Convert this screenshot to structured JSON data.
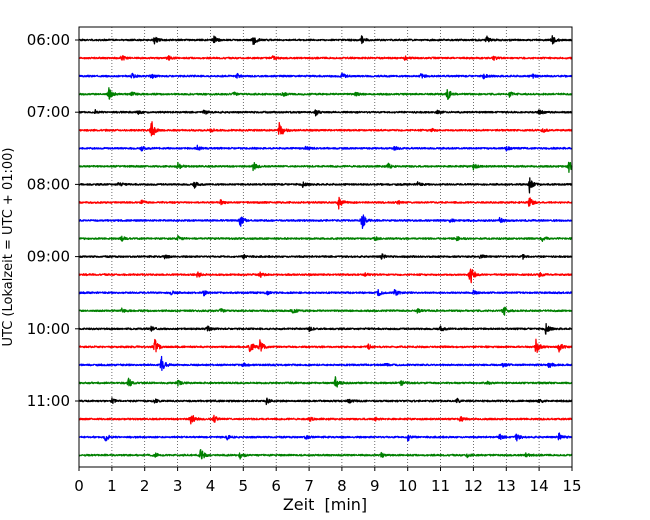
{
  "chart_data": {
    "type": "line",
    "xlabel": "Zeit  [min]",
    "ylabel": "UTC (Lokalzeit = UTC + 01:00)",
    "xlim": [
      0,
      15
    ],
    "x_ticks": [
      0,
      1,
      2,
      3,
      4,
      5,
      6,
      7,
      8,
      9,
      10,
      11,
      12,
      13,
      14,
      15
    ],
    "y_tick_labels": [
      "06:00",
      "07:00",
      "08:00",
      "09:00",
      "10:00",
      "11:00"
    ],
    "y_tick_rows": [
      0,
      4,
      8,
      12,
      16,
      20
    ],
    "vertical_grid": "dotted",
    "row_minutes": 15,
    "row_color_cycle": [
      "#000000",
      "#ff0000",
      "#0000ff",
      "#008000"
    ],
    "rows": [
      {
        "start": "06:00",
        "events": [
          [
            2.3,
            0.7
          ],
          [
            4.1,
            0.8
          ],
          [
            5.3,
            1.0
          ],
          [
            8.6,
            0.7
          ],
          [
            12.4,
            0.6
          ],
          [
            14.4,
            1.0
          ]
        ]
      },
      {
        "start": "06:15",
        "events": [
          [
            1.3,
            0.5
          ],
          [
            2.7,
            0.5
          ],
          [
            5.9,
            0.4
          ],
          [
            9.9,
            0.4
          ],
          [
            12.6,
            0.4
          ]
        ]
      },
      {
        "start": "06:30",
        "events": [
          [
            1.6,
            0.5
          ],
          [
            2.2,
            0.4
          ],
          [
            4.8,
            0.4
          ],
          [
            8.0,
            0.6
          ],
          [
            10.4,
            0.5
          ],
          [
            12.3,
            0.4
          ],
          [
            13.8,
            0.4
          ]
        ]
      },
      {
        "start": "06:45",
        "events": [
          [
            0.9,
            1.2
          ],
          [
            1.6,
            0.5
          ],
          [
            4.7,
            0.4
          ],
          [
            6.2,
            0.4
          ],
          [
            8.4,
            0.4
          ],
          [
            11.2,
            1.2
          ],
          [
            13.1,
            0.5
          ]
        ]
      },
      {
        "start": "07:00",
        "events": [
          [
            0.5,
            0.4
          ],
          [
            1.8,
            0.4
          ],
          [
            3.8,
            0.4
          ],
          [
            7.2,
            0.5
          ],
          [
            10.9,
            0.4
          ],
          [
            14.0,
            0.5
          ]
        ]
      },
      {
        "start": "07:15",
        "events": [
          [
            2.2,
            1.9
          ],
          [
            4.0,
            0.4
          ],
          [
            6.1,
            2.0
          ],
          [
            10.7,
            0.4
          ],
          [
            14.1,
            0.4
          ]
        ]
      },
      {
        "start": "07:30",
        "events": [
          [
            1.9,
            0.4
          ],
          [
            3.6,
            0.4
          ],
          [
            6.9,
            0.4
          ],
          [
            9.6,
            0.4
          ],
          [
            13.0,
            0.4
          ]
        ]
      },
      {
        "start": "07:45",
        "events": [
          [
            3.0,
            0.7
          ],
          [
            5.3,
            0.8
          ],
          [
            9.4,
            0.5
          ],
          [
            12.0,
            0.6
          ],
          [
            14.9,
            1.6
          ]
        ]
      },
      {
        "start": "08:00",
        "events": [
          [
            1.2,
            0.4
          ],
          [
            3.5,
            0.6
          ],
          [
            6.8,
            0.4
          ],
          [
            10.3,
            0.4
          ],
          [
            13.7,
            1.6
          ]
        ]
      },
      {
        "start": "08:15",
        "events": [
          [
            1.9,
            0.4
          ],
          [
            4.3,
            0.5
          ],
          [
            7.9,
            1.1
          ],
          [
            9.7,
            0.4
          ],
          [
            13.7,
            1.0
          ]
        ]
      },
      {
        "start": "08:30",
        "events": [
          [
            4.9,
            1.1
          ],
          [
            8.6,
            1.8
          ],
          [
            11.3,
            0.4
          ],
          [
            12.8,
            0.5
          ]
        ]
      },
      {
        "start": "08:45",
        "events": [
          [
            1.3,
            0.4
          ],
          [
            3.0,
            0.4
          ],
          [
            9.0,
            0.4
          ],
          [
            11.5,
            0.4
          ],
          [
            14.1,
            0.5
          ]
        ]
      },
      {
        "start": "09:00",
        "events": [
          [
            2.6,
            0.4
          ],
          [
            5.0,
            0.4
          ],
          [
            9.2,
            0.5
          ],
          [
            12.2,
            0.4
          ],
          [
            13.5,
            0.4
          ]
        ]
      },
      {
        "start": "09:15",
        "events": [
          [
            3.6,
            0.5
          ],
          [
            5.5,
            0.5
          ],
          [
            8.7,
            0.4
          ],
          [
            11.9,
            2.2
          ],
          [
            14.0,
            0.4
          ]
        ]
      },
      {
        "start": "09:30",
        "events": [
          [
            2.8,
            0.4
          ],
          [
            3.8,
            0.5
          ],
          [
            5.7,
            0.4
          ],
          [
            9.1,
            0.6
          ],
          [
            9.6,
            0.8
          ],
          [
            12.0,
            0.4
          ]
        ]
      },
      {
        "start": "09:45",
        "events": [
          [
            1.3,
            0.4
          ],
          [
            4.3,
            0.5
          ],
          [
            6.5,
            0.5
          ],
          [
            10.3,
            0.4
          ],
          [
            12.9,
            1.2
          ]
        ]
      },
      {
        "start": "10:00",
        "events": [
          [
            2.2,
            0.5
          ],
          [
            3.9,
            0.5
          ],
          [
            7.0,
            0.4
          ],
          [
            11.0,
            0.5
          ],
          [
            14.2,
            0.9
          ]
        ]
      },
      {
        "start": "10:15",
        "events": [
          [
            2.3,
            1.4
          ],
          [
            5.2,
            1.2
          ],
          [
            5.5,
            1.2
          ],
          [
            8.8,
            0.4
          ],
          [
            13.9,
            1.5
          ],
          [
            14.6,
            1.0
          ]
        ]
      },
      {
        "start": "10:30",
        "events": [
          [
            2.5,
            1.6
          ],
          [
            5.0,
            0.5
          ],
          [
            9.3,
            0.4
          ],
          [
            12.9,
            0.4
          ],
          [
            14.3,
            0.7
          ]
        ]
      },
      {
        "start": "10:45",
        "events": [
          [
            1.5,
            0.9
          ],
          [
            3.0,
            0.5
          ],
          [
            7.8,
            1.2
          ],
          [
            9.8,
            0.5
          ],
          [
            12.4,
            0.4
          ]
        ]
      },
      {
        "start": "11:00",
        "events": [
          [
            1.0,
            0.5
          ],
          [
            2.3,
            0.4
          ],
          [
            5.7,
            0.5
          ],
          [
            8.2,
            0.4
          ],
          [
            11.5,
            0.4
          ],
          [
            14.0,
            0.4
          ]
        ]
      },
      {
        "start": "11:15",
        "events": [
          [
            3.4,
            1.2
          ],
          [
            4.1,
            0.7
          ],
          [
            7.0,
            0.4
          ],
          [
            9.0,
            0.4
          ],
          [
            11.6,
            0.5
          ]
        ]
      },
      {
        "start": "11:30",
        "events": [
          [
            0.8,
            0.8
          ],
          [
            4.5,
            0.4
          ],
          [
            6.9,
            0.4
          ],
          [
            10.0,
            0.7
          ],
          [
            12.8,
            0.5
          ],
          [
            13.3,
            0.7
          ],
          [
            14.6,
            0.7
          ]
        ]
      },
      {
        "start": "11:45",
        "events": [
          [
            2.3,
            0.5
          ],
          [
            3.7,
            1.3
          ],
          [
            4.9,
            0.8
          ],
          [
            9.2,
            0.4
          ],
          [
            11.8,
            0.4
          ],
          [
            13.6,
            0.4
          ]
        ]
      }
    ]
  }
}
